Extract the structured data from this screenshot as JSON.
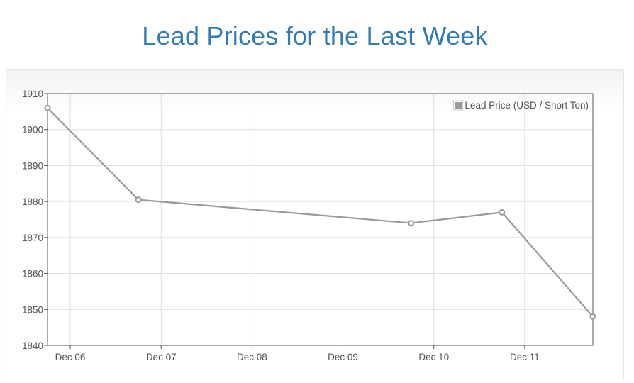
{
  "page": {
    "title": "Lead Prices for the Last Week"
  },
  "colors": {
    "title": "#337ab7",
    "series": "#9a9a9a",
    "grid": "#dddddd",
    "axis": "#555555"
  },
  "chart_data": {
    "type": "line",
    "title": "",
    "xlabel": "",
    "ylabel": "",
    "ylim": [
      1840,
      1910
    ],
    "y_ticks": [
      1840,
      1850,
      1860,
      1870,
      1880,
      1890,
      1900,
      1910
    ],
    "x_ticks": [
      {
        "value": "Dec 06",
        "label": "Dec 06"
      },
      {
        "value": "Dec 07",
        "label": "Dec 07"
      },
      {
        "value": "Dec 08",
        "label": "Dec 08"
      },
      {
        "value": "Dec 09",
        "label": "Dec 09"
      },
      {
        "value": "Dec 10",
        "label": "Dec 10"
      },
      {
        "value": "Dec 11",
        "label": "Dec 11"
      }
    ],
    "xlim": [
      "Dec 05 18:00",
      "Dec 11 18:00"
    ],
    "grid": true,
    "legend": {
      "position": "top-right",
      "entries": [
        "Lead Price (USD / Short Ton)"
      ]
    },
    "series": [
      {
        "name": "Lead Price (USD / Short Ton)",
        "points": [
          {
            "x": "Dec 05 18:00",
            "y": 1906
          },
          {
            "x": "Dec 06 18:00",
            "y": 1880.5
          },
          {
            "x": "Dec 09 18:00",
            "y": 1874
          },
          {
            "x": "Dec 10 18:00",
            "y": 1877
          },
          {
            "x": "Dec 11 18:00",
            "y": 1848
          }
        ]
      }
    ]
  }
}
